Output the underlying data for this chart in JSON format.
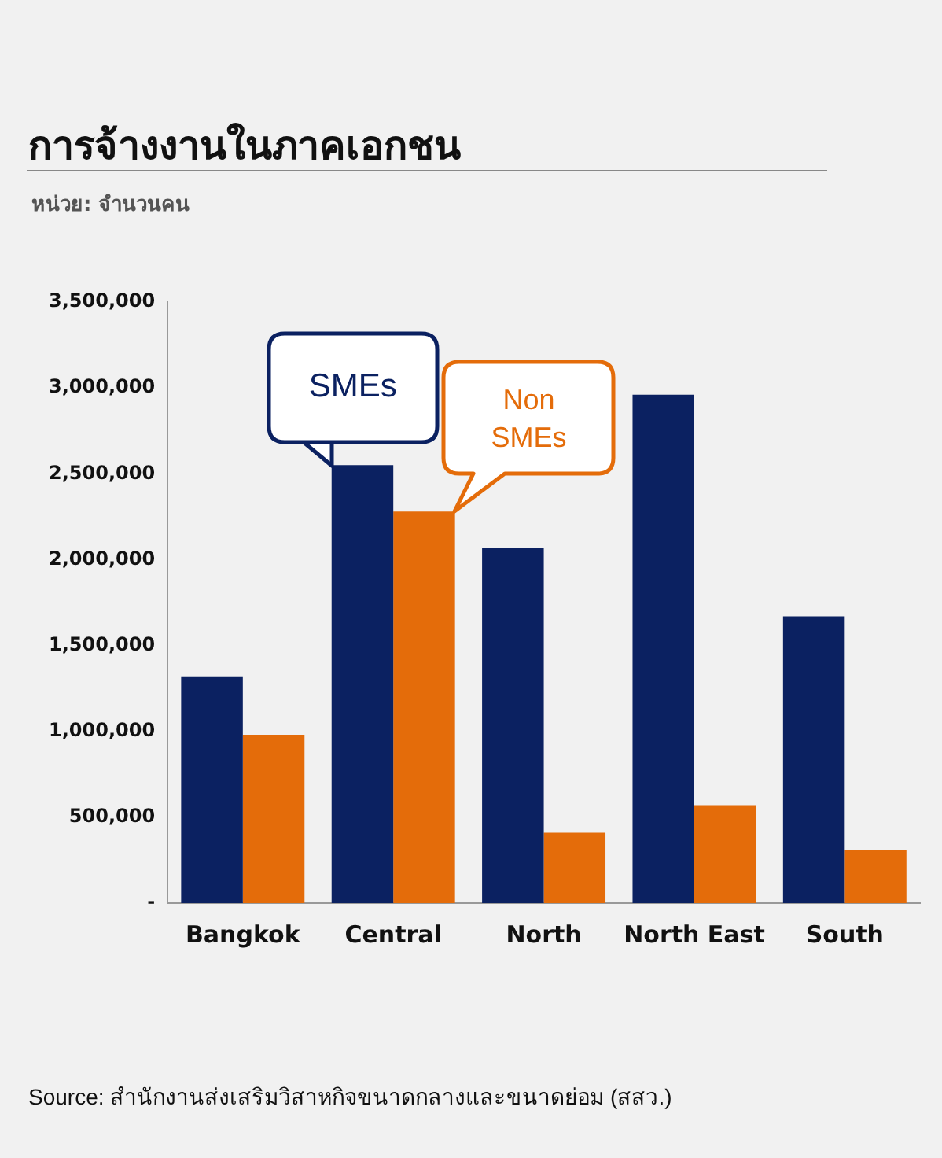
{
  "chart_data": {
    "type": "bar",
    "title": "การจ้างงานในภาคเอกชน",
    "subtitle": "หน่วย: จำนวนคน",
    "annotations": [
      "Source: สำนักงานส่งเสริมวิสาหกิจขนาดกลางและขนาดย่อม (สสว.)"
    ],
    "categories": [
      "Bangkok",
      "Central",
      "North",
      "North East",
      "South"
    ],
    "series": [
      {
        "name": "SMEs",
        "color": "#0b2161",
        "values": [
          1320000,
          2550000,
          2070000,
          2960000,
          1670000
        ]
      },
      {
        "name": "Non SMEs",
        "color": "#e46c0a",
        "values": [
          980000,
          2280000,
          410000,
          570000,
          310000
        ]
      }
    ],
    "ylim": [
      0,
      3500000
    ],
    "yticks": [
      {
        "value": 0,
        "label": "-"
      },
      {
        "value": 500000,
        "label": "500,000"
      },
      {
        "value": 1000000,
        "label": "1,000,000"
      },
      {
        "value": 1500000,
        "label": "1,500,000"
      },
      {
        "value": 2000000,
        "label": "2,000,000"
      },
      {
        "value": 2500000,
        "label": "2,500,000"
      },
      {
        "value": 3000000,
        "label": "3,000,000"
      },
      {
        "value": 3500000,
        "label": "3,500,000"
      }
    ],
    "grid": false,
    "legend": false
  }
}
